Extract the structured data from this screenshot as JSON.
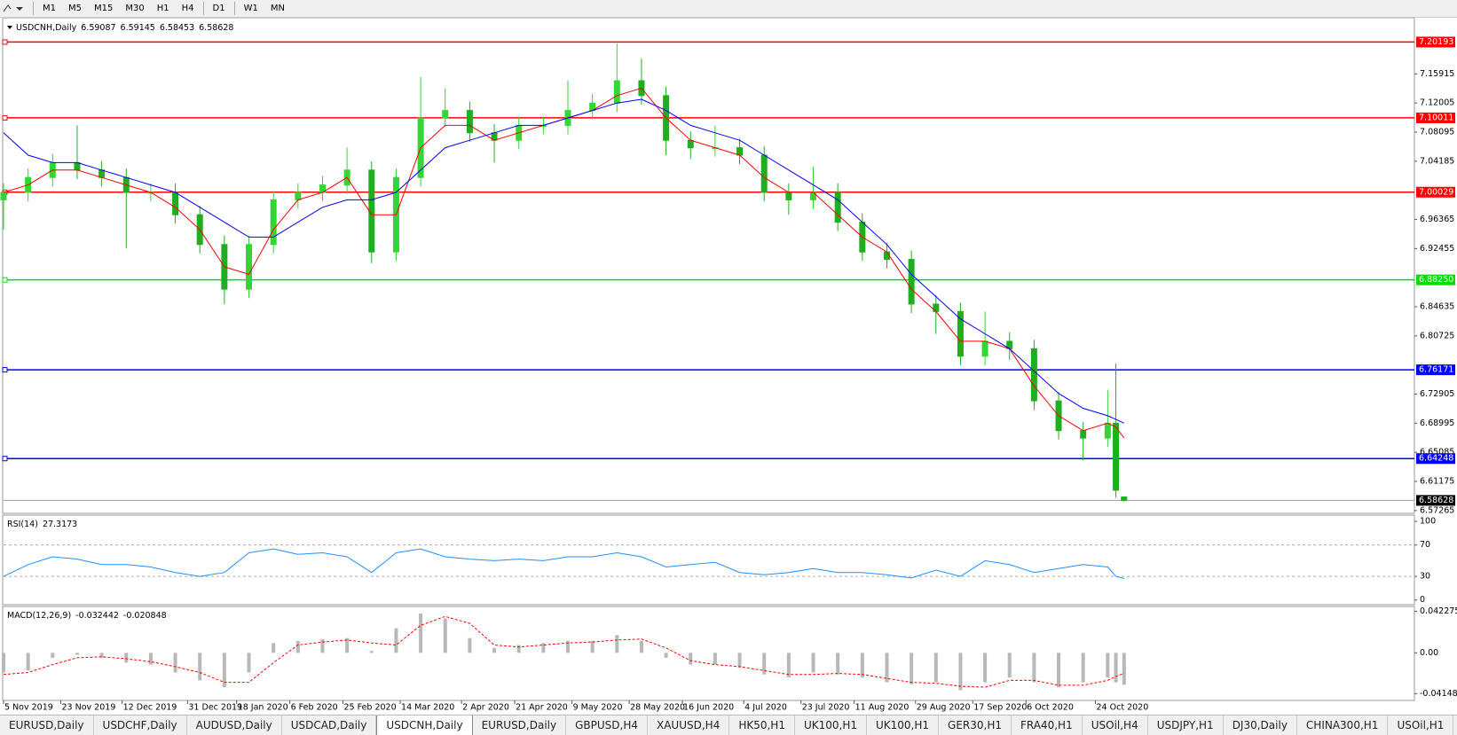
{
  "toolbar": {
    "timeframes": [
      "M1",
      "M5",
      "M15",
      "M30",
      "H1",
      "H4",
      "D1",
      "W1",
      "MN"
    ]
  },
  "chart_data": [
    {
      "type": "candlestick",
      "title": "USDCNH,Daily",
      "readout": [
        6.59087,
        6.59145,
        6.58453,
        6.58628
      ],
      "x": [
        0,
        6,
        12,
        18,
        24,
        30,
        36,
        42,
        48,
        54,
        60,
        66,
        72,
        78,
        84,
        90,
        96,
        102,
        108,
        114,
        120,
        126,
        132,
        138,
        144,
        150,
        156,
        162,
        168,
        174,
        180,
        186,
        192,
        198,
        204,
        210,
        216,
        222,
        228,
        234,
        240,
        246,
        252,
        258,
        264,
        270,
        272,
        274
      ],
      "open": [
        6.99,
        7.0,
        7.02,
        7.04,
        7.03,
        7.02,
        7.0,
        7.0,
        6.97,
        6.93,
        6.87,
        6.93,
        6.99,
        7.0,
        7.01,
        7.03,
        6.92,
        7.02,
        7.1,
        7.11,
        7.08,
        7.07,
        7.09,
        7.09,
        7.11,
        7.12,
        7.15,
        7.13,
        7.07,
        7.06,
        7.06,
        7.05,
        7.0,
        6.99,
        7.0,
        6.96,
        6.92,
        6.91,
        6.85,
        6.84,
        6.78,
        6.8,
        6.79,
        6.72,
        6.68,
        6.67,
        6.69,
        6.59087
      ],
      "high": [
        7.012,
        7.032,
        7.052,
        7.09,
        7.042,
        7.032,
        7.012,
        7.012,
        6.982,
        6.942,
        6.942,
        7.002,
        7.012,
        7.022,
        7.06,
        7.042,
        7.032,
        7.155,
        7.14,
        7.122,
        7.092,
        7.102,
        7.102,
        7.15,
        7.132,
        7.2,
        7.18,
        7.142,
        7.082,
        7.09,
        7.072,
        7.062,
        7.012,
        7.035,
        7.012,
        6.972,
        6.932,
        6.922,
        6.862,
        6.852,
        6.84,
        6.812,
        6.802,
        6.732,
        6.692,
        6.735,
        6.77,
        6.59145
      ],
      "low": [
        6.95,
        6.988,
        7.008,
        7.018,
        7.008,
        6.925,
        6.988,
        6.958,
        6.918,
        6.85,
        6.858,
        6.918,
        6.978,
        6.988,
        6.998,
        6.905,
        6.908,
        7.008,
        7.088,
        7.068,
        7.04,
        7.058,
        7.078,
        7.078,
        7.098,
        7.108,
        7.118,
        7.05,
        7.045,
        7.048,
        7.038,
        6.988,
        6.97,
        6.978,
        6.948,
        6.908,
        6.898,
        6.838,
        6.81,
        6.768,
        6.768,
        6.775,
        6.708,
        6.668,
        6.64,
        6.658,
        6.59,
        6.58453
      ],
      "close": [
        7.0,
        7.02,
        7.04,
        7.03,
        7.02,
        7.0,
        7.0,
        6.97,
        6.93,
        6.87,
        6.93,
        6.99,
        7.0,
        7.01,
        7.03,
        6.92,
        7.02,
        7.1,
        7.11,
        7.08,
        7.07,
        7.09,
        7.09,
        7.11,
        7.12,
        7.15,
        7.13,
        7.07,
        7.06,
        7.06,
        7.05,
        7.0,
        6.99,
        7.0,
        6.96,
        6.92,
        6.91,
        6.85,
        6.84,
        6.78,
        6.8,
        6.79,
        6.72,
        6.68,
        6.67,
        6.69,
        6.6,
        6.58628
      ],
      "up_color": "#33d633",
      "down_color": "#1fae1f",
      "lines": [
        {
          "color": "#ff0000",
          "values": [
            7.0,
            7.01,
            7.03,
            7.03,
            7.02,
            7.01,
            7.0,
            6.98,
            6.95,
            6.9,
            6.89,
            6.95,
            6.99,
            7.0,
            7.02,
            6.97,
            6.97,
            7.06,
            7.09,
            7.09,
            7.07,
            7.08,
            7.09,
            7.1,
            7.11,
            7.13,
            7.14,
            7.1,
            7.07,
            7.06,
            7.05,
            7.02,
            7.0,
            7.0,
            6.97,
            6.94,
            6.92,
            6.87,
            6.84,
            6.8,
            6.8,
            6.79,
            6.74,
            6.7,
            6.68,
            6.69,
            6.685,
            6.67
          ]
        },
        {
          "color": "#0000ff",
          "values": [
            7.08,
            7.05,
            7.04,
            7.04,
            7.03,
            7.02,
            7.01,
            7.0,
            6.98,
            6.96,
            6.94,
            6.94,
            6.96,
            6.98,
            6.99,
            6.99,
            7.0,
            7.03,
            7.06,
            7.07,
            7.08,
            7.09,
            7.09,
            7.1,
            7.11,
            7.12,
            7.125,
            7.11,
            7.09,
            7.08,
            7.07,
            7.05,
            7.03,
            7.01,
            6.99,
            6.96,
            6.93,
            6.89,
            6.86,
            6.83,
            6.81,
            6.79,
            6.76,
            6.73,
            6.71,
            6.7,
            6.695,
            6.69
          ]
        }
      ],
      "levels": [
        {
          "value": 7.20193,
          "color": "#ff0000"
        },
        {
          "value": 7.10011,
          "color": "#ff0000"
        },
        {
          "value": 7.00029,
          "color": "#ff0000"
        },
        {
          "value": 6.8825,
          "label": "6.88250",
          "color": "#00dd00"
        },
        {
          "value": 6.76171,
          "color": "#0000ff"
        },
        {
          "value": 6.64248,
          "color": "#0000ff"
        }
      ],
      "last": 6.58628,
      "xlim": [
        0,
        345
      ],
      "xticks": [
        {
          "value": 0,
          "label": "5 Nov 2019"
        },
        {
          "value": 14,
          "label": "23 Nov 2019"
        },
        {
          "value": 29,
          "label": "12 Dec 2019"
        },
        {
          "value": 45,
          "label": "31 Dec 2019"
        },
        {
          "value": 57,
          "label": "18 Jan 2020"
        },
        {
          "value": 70,
          "label": "6 Feb 2020"
        },
        {
          "value": 83,
          "label": "25 Feb 2020"
        },
        {
          "value": 97,
          "label": "14 Mar 2020"
        },
        {
          "value": 112,
          "label": "2 Apr 2020"
        },
        {
          "value": 125,
          "label": "21 Apr 2020"
        },
        {
          "value": 139,
          "label": "9 May 2020"
        },
        {
          "value": 153,
          "label": "28 May 2020"
        },
        {
          "value": 166,
          "label": "16 Jun 2020"
        },
        {
          "value": 181,
          "label": "4 Jul 2020"
        },
        {
          "value": 195,
          "label": "23 Jul 2020"
        },
        {
          "value": 208,
          "label": "11 Aug 2020"
        },
        {
          "value": 223,
          "label": "29 Aug 2020"
        },
        {
          "value": 237,
          "label": "17 Sep 2020"
        },
        {
          "value": 250,
          "label": "6 Oct 2020"
        },
        {
          "value": 267,
          "label": "24 Oct 2020"
        }
      ],
      "ylim": [
        6.5689,
        7.2346
      ],
      "yticks": [
        6.57265,
        6.61175,
        6.65085,
        6.68995,
        6.72905,
        6.80725,
        6.84635,
        6.92455,
        6.96365,
        7.04185,
        7.08095,
        7.12005,
        7.15915
      ]
    },
    {
      "type": "line",
      "title": "RSI(14)",
      "readout": 27.3173,
      "x": [
        0,
        6,
        12,
        18,
        24,
        30,
        36,
        42,
        48,
        54,
        60,
        66,
        72,
        78,
        84,
        90,
        96,
        102,
        108,
        114,
        120,
        126,
        132,
        138,
        144,
        150,
        156,
        162,
        168,
        174,
        180,
        186,
        192,
        198,
        204,
        210,
        216,
        222,
        228,
        234,
        240,
        246,
        252,
        258,
        264,
        270,
        272,
        274
      ],
      "values": [
        30,
        45,
        55,
        52,
        45,
        45,
        42,
        35,
        30,
        35,
        60,
        65,
        58,
        60,
        55,
        35,
        60,
        65,
        55,
        52,
        50,
        52,
        50,
        55,
        55,
        60,
        55,
        42,
        45,
        48,
        35,
        32,
        35,
        40,
        35,
        35,
        32,
        28,
        38,
        30,
        50,
        45,
        35,
        40,
        45,
        42,
        30,
        27.3173
      ],
      "color": "#1e90ff",
      "ylim": [
        -6,
        108
      ],
      "yticks": [
        0,
        30,
        70,
        100
      ],
      "levels": [
        30,
        70
      ]
    },
    {
      "type": "bar",
      "title": "MACD(12,26,9)",
      "readout": [
        -0.032442,
        -0.020848
      ],
      "x": [
        0,
        6,
        12,
        18,
        24,
        30,
        36,
        42,
        48,
        54,
        60,
        66,
        72,
        78,
        84,
        90,
        96,
        102,
        108,
        114,
        120,
        126,
        132,
        138,
        144,
        150,
        156,
        162,
        168,
        174,
        180,
        186,
        192,
        198,
        204,
        210,
        216,
        222,
        228,
        234,
        240,
        246,
        252,
        258,
        264,
        270,
        272,
        274
      ],
      "values": [
        -0.02,
        -0.018,
        -0.005,
        -0.002,
        -0.005,
        -0.01,
        -0.012,
        -0.02,
        -0.028,
        -0.035,
        -0.02,
        0.01,
        0.012,
        0.014,
        0.015,
        0.002,
        0.025,
        0.04,
        0.035,
        0.015,
        0.005,
        0.008,
        0.01,
        0.012,
        0.012,
        0.018,
        0.012,
        -0.005,
        -0.012,
        -0.012,
        -0.015,
        -0.022,
        -0.025,
        -0.02,
        -0.022,
        -0.025,
        -0.03,
        -0.032,
        -0.03,
        -0.038,
        -0.03,
        -0.025,
        -0.03,
        -0.035,
        -0.03,
        -0.025,
        -0.03,
        -0.032442
      ],
      "color": "#b8b8b8",
      "signal": {
        "color": "#ff0000",
        "values": [
          -0.022,
          -0.02,
          -0.012,
          -0.005,
          -0.004,
          -0.006,
          -0.009,
          -0.014,
          -0.02,
          -0.03,
          -0.03,
          -0.01,
          0.008,
          0.011,
          0.013,
          0.01,
          0.008,
          0.028,
          0.037,
          0.03,
          0.008,
          0.006,
          0.008,
          0.01,
          0.011,
          0.013,
          0.014,
          0.005,
          -0.008,
          -0.012,
          -0.014,
          -0.018,
          -0.022,
          -0.022,
          -0.021,
          -0.022,
          -0.026,
          -0.03,
          -0.031,
          -0.034,
          -0.035,
          -0.028,
          -0.028,
          -0.033,
          -0.033,
          -0.028,
          -0.024,
          -0.020848
        ]
      },
      "ylim": [
        -0.0484,
        0.0472
      ],
      "yticks": [
        -0.04148,
        {
          "value": 0,
          "label": "0.00"
        },
        0.042275
      ]
    }
  ],
  "tabs": {
    "items": [
      "EURUSD,Daily",
      "USDCHF,Daily",
      "AUDUSD,Daily",
      "USDCAD,Daily",
      "USDCNH,Daily",
      "EURUSD,Daily",
      "GBPUSD,H4",
      "XAUUSD,H4",
      "HK50,H1",
      "UK100,H1",
      "UK100,H1",
      "GER30,H1",
      "FRA40,H1",
      "USOil,H4",
      "USDJPY,H1",
      "DJ30,Daily",
      "CHINA300,H1",
      "USOil,H1"
    ],
    "active": 4
  }
}
